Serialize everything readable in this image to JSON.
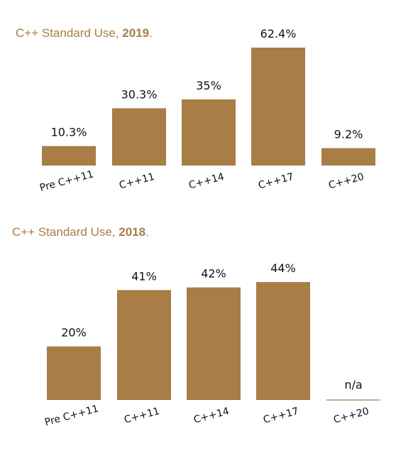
{
  "chart_data": [
    {
      "type": "bar",
      "title_text": "C++ Standard Use, ",
      "title_year": "2019",
      "title_end": ".",
      "categories": [
        "Pre C++11",
        "C++11",
        "C++14",
        "C++17",
        "C++20"
      ],
      "values": [
        10.3,
        30.3,
        35,
        62.4,
        9.2
      ],
      "value_labels": [
        "10.3%",
        "30.3%",
        "35%",
        "62.4%",
        "9.2%"
      ],
      "ylim": [
        0,
        62.4
      ],
      "bar_color": "#a87d46"
    },
    {
      "type": "bar",
      "title_text": "C++ Standard Use, ",
      "title_year": "2018",
      "title_end": ".",
      "categories": [
        "Pre C++11",
        "C++11",
        "C++14",
        "C++17",
        "C++20"
      ],
      "values": [
        20,
        41,
        42,
        44,
        null
      ],
      "value_labels": [
        "20%",
        "41%",
        "42%",
        "44%",
        "n/a"
      ],
      "ylim": [
        0,
        44
      ],
      "bar_color": "#a87d46"
    }
  ]
}
